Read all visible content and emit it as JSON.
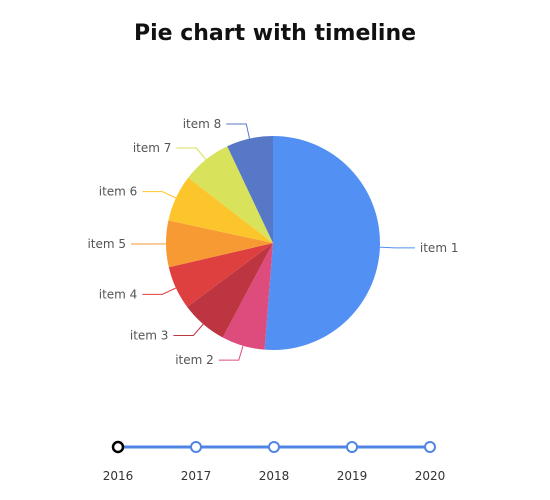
{
  "chart_data": {
    "type": "pie",
    "title": "Pie chart with timeline",
    "categories": [
      "item 1",
      "item 2",
      "item 3",
      "item 4",
      "item 5",
      "item 6",
      "item 7",
      "item 8"
    ],
    "values": [
      51,
      6.5,
      7,
      6.5,
      7,
      7,
      7.5,
      7
    ],
    "colors": [
      "#5291f3",
      "#de4b7d",
      "#bd3541",
      "#de4040",
      "#f79a33",
      "#fdc52c",
      "#d8e25a",
      "#5678c7"
    ],
    "timeline": {
      "years": [
        "2016",
        "2017",
        "2018",
        "2019",
        "2020"
      ],
      "selected": "2016",
      "line_color": "#4f86e6"
    }
  }
}
